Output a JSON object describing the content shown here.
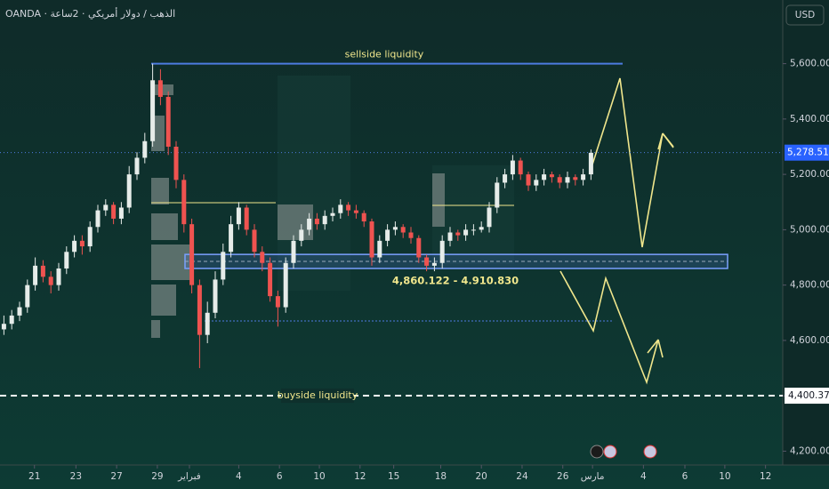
{
  "chart_data": {
    "type": "candlestick",
    "title": "OANDA · الذهب / دولار أمريكي · 2ساعة",
    "currency": "USD",
    "up_color": "#e6ece9",
    "down_color": "#ef5350",
    "x": [
      0.5,
      1.5,
      2.5,
      3.5,
      4.5,
      5.5,
      6.5,
      7.5,
      8.5,
      9.5,
      10.5,
      11.5,
      12.5,
      13.5,
      14.5,
      15.5,
      16.5,
      17.5,
      18.5,
      19.5,
      20.5,
      21.5,
      22.5,
      23.5,
      24.5,
      25.5,
      26.5,
      27.5,
      28.5,
      29.5,
      30.5,
      31.5,
      32.5,
      33.5,
      34.5,
      35.5,
      36.5,
      37.5,
      38.5,
      39.5,
      40.5,
      41.5,
      42.5,
      43.5,
      44.5,
      45.5,
      46.5,
      47.5,
      48.5,
      49.5,
      50.5,
      51.5,
      52.5,
      53.5,
      54.5,
      55.5,
      56.5,
      57.5,
      58.5,
      59.5,
      60.5,
      61.5,
      62.5,
      63.5,
      64.5,
      65.5,
      66.5,
      67.5,
      68.5,
      69.5,
      70.5,
      71.5,
      72.5,
      73.5,
      74.5,
      75.5
    ],
    "open": [
      4640,
      4660,
      4690,
      4720,
      4800,
      4870,
      4830,
      4800,
      4860,
      4920,
      4960,
      4940,
      5010,
      5070,
      5090,
      5040,
      5080,
      5200,
      5260,
      5320,
      5540,
      5480,
      5300,
      5180,
      5020,
      4800,
      4620,
      4700,
      4820,
      4920,
      5020,
      5080,
      5000,
      4920,
      4880,
      4760,
      4720,
      4880,
      4960,
      5000,
      5040,
      5020,
      5050,
      5060,
      5090,
      5070,
      5060,
      5030,
      4900,
      4960,
      5000,
      5010,
      4990,
      4970,
      4900,
      4870,
      4880,
      4960,
      4990,
      4980,
      5000,
      5000,
      5010,
      5080,
      5170,
      5200,
      5250,
      5200,
      5160,
      5180,
      5200,
      5190,
      5170,
      5190,
      5180,
      5200
    ],
    "high": [
      4690,
      4710,
      4740,
      4820,
      4900,
      4890,
      4850,
      4880,
      4940,
      4980,
      4980,
      5030,
      5090,
      5110,
      5100,
      5100,
      5230,
      5280,
      5350,
      5600,
      5580,
      5500,
      5320,
      5200,
      5040,
      4820,
      4740,
      4850,
      4950,
      5050,
      5100,
      5090,
      5020,
      4940,
      4900,
      4780,
      4900,
      4980,
      5020,
      5060,
      5060,
      5070,
      5080,
      5110,
      5100,
      5090,
      5070,
      5040,
      4980,
      5020,
      5030,
      5020,
      5010,
      4980,
      4910,
      4900,
      4980,
      5010,
      5000,
      5020,
      5020,
      5030,
      5100,
      5190,
      5220,
      5270,
      5260,
      5210,
      5200,
      5220,
      5210,
      5200,
      5210,
      5200,
      5220,
      5290
    ],
    "low": [
      4620,
      4640,
      4670,
      4700,
      4780,
      4810,
      4770,
      4780,
      4840,
      4900,
      4910,
      4920,
      4990,
      5050,
      5020,
      5020,
      5060,
      5180,
      5240,
      5300,
      5450,
      5270,
      5150,
      4990,
      4770,
      4500,
      4590,
      4680,
      4800,
      4900,
      5000,
      4980,
      4900,
      4850,
      4740,
      4650,
      4700,
      4860,
      4940,
      4980,
      5000,
      5000,
      5030,
      5040,
      5050,
      5040,
      5010,
      4870,
      4880,
      4940,
      4980,
      4970,
      4950,
      4880,
      4850,
      4850,
      4860,
      4940,
      4960,
      4960,
      4980,
      4990,
      4990,
      5060,
      5150,
      5180,
      5180,
      5140,
      5140,
      5160,
      5170,
      5150,
      5150,
      5160,
      5160,
      5180
    ],
    "close": [
      4660,
      4690,
      4720,
      4800,
      4870,
      4830,
      4800,
      4860,
      4920,
      4960,
      4940,
      5010,
      5070,
      5090,
      5040,
      5080,
      5200,
      5260,
      5320,
      5540,
      5480,
      5300,
      5180,
      5020,
      4800,
      4620,
      4700,
      4820,
      4920,
      5020,
      5080,
      5000,
      4920,
      4880,
      4760,
      4720,
      4880,
      4960,
      5000,
      5040,
      5020,
      5050,
      5060,
      5090,
      5070,
      5060,
      5030,
      4900,
      4960,
      5000,
      5010,
      4990,
      4970,
      4900,
      4870,
      4880,
      4960,
      4990,
      4980,
      5000,
      5000,
      5010,
      5080,
      5170,
      5200,
      5250,
      5200,
      5160,
      5180,
      5200,
      5190,
      5170,
      5190,
      5180,
      5200,
      5278
    ],
    "xlim": [
      0,
      100
    ],
    "xticks": [
      {
        "value": 4.4,
        "label": "21"
      },
      {
        "value": 9.7,
        "label": "23"
      },
      {
        "value": 14.9,
        "label": "27"
      },
      {
        "value": 20.1,
        "label": "29"
      },
      {
        "value": 24.2,
        "label": "فبراير"
      },
      {
        "value": 30.5,
        "label": "4"
      },
      {
        "value": 35.7,
        "label": "6"
      },
      {
        "value": 40.8,
        "label": "10"
      },
      {
        "value": 46,
        "label": "12"
      },
      {
        "value": 50.3,
        "label": "15"
      },
      {
        "value": 56.3,
        "label": "18"
      },
      {
        "value": 61.5,
        "label": "20"
      },
      {
        "value": 66.7,
        "label": "24"
      },
      {
        "value": 71.9,
        "label": "26"
      },
      {
        "value": 75.7,
        "label": "مارس"
      },
      {
        "value": 82.2,
        "label": "4"
      },
      {
        "value": 87.5,
        "label": "6"
      },
      {
        "value": 92.6,
        "label": "10"
      },
      {
        "value": 97.8,
        "label": "12"
      }
    ],
    "ylim": [
      4150,
      5830
    ],
    "yticks": [
      {
        "value": 5600,
        "label": "5,600.000"
      },
      {
        "value": 5400,
        "label": "5,400.000"
      },
      {
        "value": 5200,
        "label": "5,200.000"
      },
      {
        "value": 5000,
        "label": "5,000.000"
      },
      {
        "value": 4800,
        "label": "4,800.000"
      },
      {
        "value": 4600,
        "label": "4,600.000"
      },
      {
        "value": 4400,
        "label": "4,400.000"
      },
      {
        "value": 4200,
        "label": "4,200.000"
      }
    ],
    "last_price": {
      "value": 5278.51,
      "label": "5,278.510"
    },
    "sellside": {
      "value": 5600,
      "label": "sellside liquidity"
    },
    "buyside": {
      "value": 4400.371,
      "label": "buyside liquidity",
      "tag": "4,400.371"
    },
    "zone": {
      "low": 4860.122,
      "high": 4910.83,
      "label": "4,860.122 - 4.910.830"
    }
  }
}
